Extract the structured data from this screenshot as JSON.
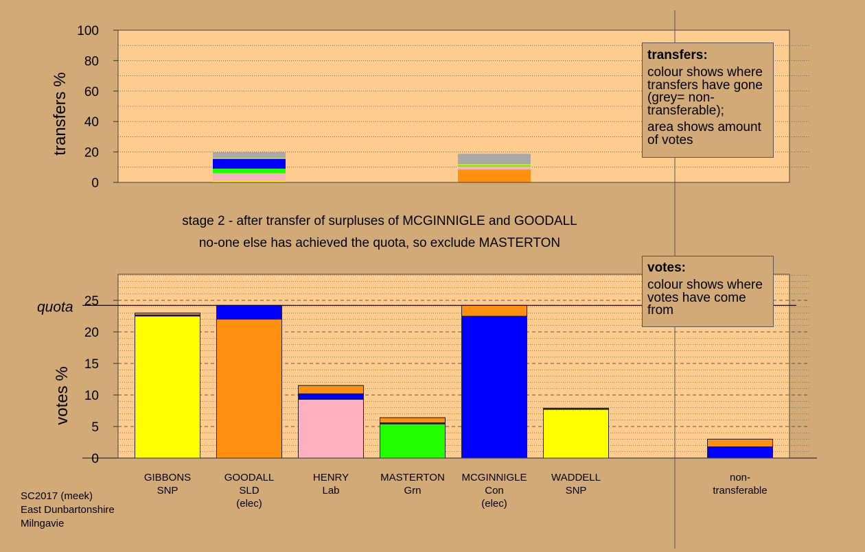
{
  "chart_data": [
    {
      "type": "bar",
      "stacked": true,
      "ylabel": "transfers %",
      "ylim": [
        0,
        100
      ],
      "yticks": [
        0,
        20,
        40,
        60,
        80,
        100
      ],
      "grid": true,
      "categories": [
        "GIBBONS",
        "GOODALL",
        "HENRY",
        "MASTERTON",
        "MCGINNIGLE",
        "WADDELL",
        "non-transferable"
      ],
      "bars": [
        {
          "category": "GOODALL",
          "segments": [
            {
              "from": "GIBBONS SNP",
              "color": "#ffff00",
              "value": 1
            },
            {
              "from": "HENRY Lab",
              "color": "#ffb0c0",
              "value": 5
            },
            {
              "from": "MASTERTON Grn",
              "color": "#22ff00",
              "value": 3
            },
            {
              "from": "MCGINNIGLE Con",
              "color": "#0000ff",
              "value": 6.5
            },
            {
              "from": "WADDELL SNP",
              "color": "#ffff00",
              "value": 0.5
            },
            {
              "from": "non-transferable",
              "color": "#a8a8a8",
              "value": 3.8
            }
          ]
        },
        {
          "category": "MCGINNIGLE",
          "segments": [
            {
              "from": "GOODALL SLD",
              "color": "#ff9010",
              "value": 8.5
            },
            {
              "from": "HENRY Lab",
              "color": "#ffb0c0",
              "value": 2
            },
            {
              "from": "MASTERTON Grn",
              "color": "#22ff00",
              "value": 0.8
            },
            {
              "from": "WADDELL SNP",
              "color": "#ffff00",
              "value": 0.5
            },
            {
              "from": "non-transferable",
              "color": "#a8a8a8",
              "value": 7
            }
          ]
        }
      ]
    },
    {
      "type": "bar",
      "stacked": true,
      "ylabel": "votes %",
      "ylim": [
        0,
        30
      ],
      "yticks": [
        0,
        5,
        10,
        15,
        20,
        25
      ],
      "grid": true,
      "quota": 24.2,
      "quota_label": "quota",
      "categories": [
        {
          "name": "GIBBONS",
          "party": "SNP",
          "note": ""
        },
        {
          "name": "GOODALL",
          "party": "SLD",
          "note": "(elec)"
        },
        {
          "name": "HENRY",
          "party": "Lab",
          "note": ""
        },
        {
          "name": "MASTERTON",
          "party": "Grn",
          "note": ""
        },
        {
          "name": "MCGINNIGLE",
          "party": "Con",
          "note": "(elec)"
        },
        {
          "name": "WADDELL",
          "party": "SNP",
          "note": ""
        },
        {
          "name": "non-",
          "party": "transferable",
          "note": ""
        }
      ],
      "bars": [
        {
          "category": "GIBBONS",
          "segments": [
            {
              "source": "first preferences",
              "color": "#ffff00",
              "value": 22.5
            },
            {
              "source": "MCGINNIGLE",
              "color": "#0000ff",
              "value": 0.2
            },
            {
              "source": "GOODALL",
              "color": "#ff9010",
              "value": 0.3
            }
          ]
        },
        {
          "category": "GOODALL",
          "segments": [
            {
              "source": "first preferences",
              "color": "#ff9010",
              "value": 22.0
            },
            {
              "source": "MCGINNIGLE",
              "color": "#0000ff",
              "value": 2.2
            }
          ]
        },
        {
          "category": "HENRY",
          "segments": [
            {
              "source": "first preferences",
              "color": "#ffb0c0",
              "value": 9.3
            },
            {
              "source": "MCGINNIGLE",
              "color": "#0000ff",
              "value": 0.9
            },
            {
              "source": "GOODALL",
              "color": "#ff9010",
              "value": 1.3
            }
          ]
        },
        {
          "category": "MASTERTON",
          "segments": [
            {
              "source": "first preferences",
              "color": "#22ff00",
              "value": 5.4
            },
            {
              "source": "MCGINNIGLE",
              "color": "#0000ff",
              "value": 0.2
            },
            {
              "source": "GOODALL",
              "color": "#ff9010",
              "value": 0.8
            }
          ]
        },
        {
          "category": "MCGINNIGLE",
          "segments": [
            {
              "source": "first preferences",
              "color": "#0000ff",
              "value": 22.5
            },
            {
              "source": "GOODALL",
              "color": "#ff9010",
              "value": 1.7
            }
          ]
        },
        {
          "category": "WADDELL",
          "segments": [
            {
              "source": "first preferences",
              "color": "#ffff00",
              "value": 7.7
            },
            {
              "source": "MCGINNIGLE",
              "color": "#0000ff",
              "value": 0.1
            },
            {
              "source": "GOODALL",
              "color": "#ff9010",
              "value": 0.1
            }
          ]
        },
        {
          "category": "non-transferable",
          "segments": [
            {
              "source": "MCGINNIGLE",
              "color": "#0000ff",
              "value": 1.8
            },
            {
              "source": "GOODALL",
              "color": "#ff9010",
              "value": 1.2
            }
          ]
        }
      ]
    }
  ],
  "stage_text": {
    "line1": "stage 2 - after transfer of surpluses of MCGINNIGLE and GOODALL",
    "line2": "no-one else has achieved the quota, so exclude MASTERTON"
  },
  "transfers_legend": {
    "title": "transfers:",
    "para1": "colour shows where transfers have gone (grey= non-transferable);",
    "para2": "area shows amount of votes"
  },
  "votes_legend": {
    "title": "votes:",
    "para1": "colour shows where votes have come from"
  },
  "footer": {
    "line1": "SC2017 (meek)",
    "line2": "East Dunbartonshire",
    "line3": "Milngavie"
  },
  "colors": {
    "background": "#d2aa78",
    "plot_area": "#ffcc90",
    "snp": "#ffff00",
    "sld": "#ff9010",
    "lab": "#ffb0c0",
    "grn": "#22ff00",
    "con": "#0000ff",
    "non_transferable": "#a8a8a8"
  }
}
